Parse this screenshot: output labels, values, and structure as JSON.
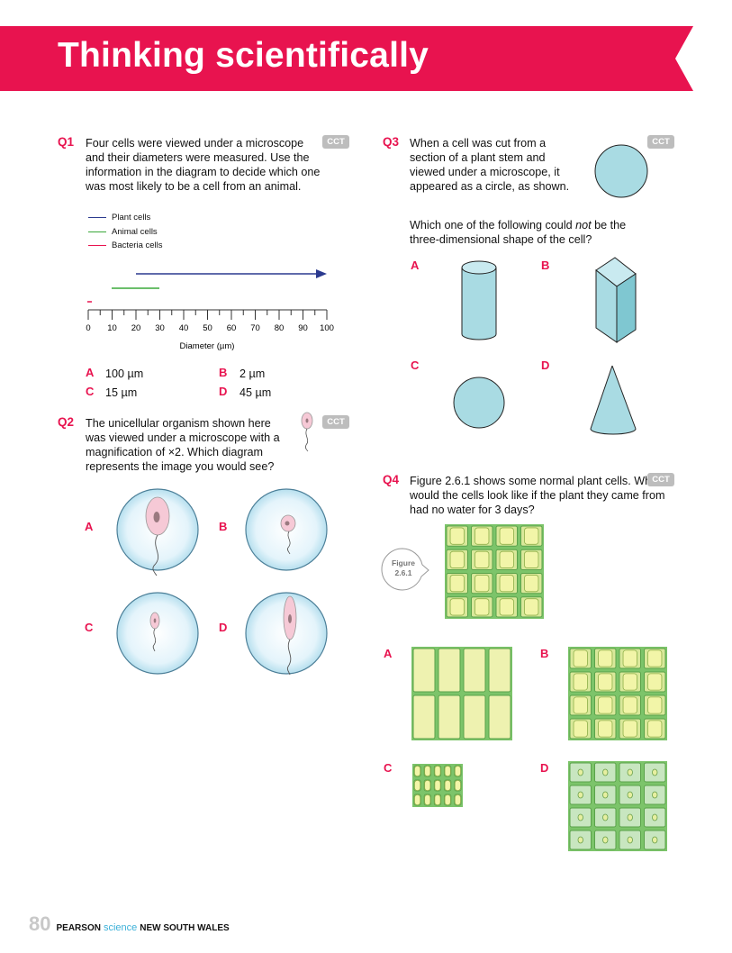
{
  "header": {
    "title": "Thinking scientifically"
  },
  "badge": "CCT",
  "q1": {
    "num": "Q1",
    "text": "Four cells were viewed under a microscope and their diameters were measured. Use the information in the diagram to decide which one was most likely to be a cell from an animal.",
    "legend": [
      {
        "label": "Plant cells",
        "color": "#2b3a8f"
      },
      {
        "label": "Animal cells",
        "color": "#3aa83a"
      },
      {
        "label": "Bacteria cells",
        "color": "#e8134f"
      }
    ],
    "axis_label": "Diameter (µm)",
    "ticks": [
      "0",
      "10",
      "20",
      "30",
      "40",
      "50",
      "60",
      "70",
      "80",
      "90",
      "100"
    ],
    "options": [
      {
        "letter": "A",
        "text": "100 µm"
      },
      {
        "letter": "B",
        "text": "2 µm"
      },
      {
        "letter": "C",
        "text": "15 µm"
      },
      {
        "letter": "D",
        "text": "45 µm"
      }
    ]
  },
  "q2": {
    "num": "Q2",
    "text": "The unicellular organism shown here was viewed under a microscope with a magnification of ×2. Which diagram represents the image you would see?",
    "options": [
      "A",
      "B",
      "C",
      "D"
    ]
  },
  "q3": {
    "num": "Q3",
    "text": "When a cell was cut from a section of a plant stem and viewed under a microscope, it appeared as a circle, as shown.",
    "text2_pre": "Which one of the following could ",
    "text2_em": "not",
    "text2_post": " be the three-dimensional shape of the cell?",
    "options": [
      "A",
      "B",
      "C",
      "D"
    ]
  },
  "q4": {
    "num": "Q4",
    "text": "Figure 2.6.1 shows some normal plant cells. What would the cells look like if the plant they came from had no water for 3 days?",
    "figure_word": "Figure",
    "figure_num": "2.6.1",
    "options": [
      "A",
      "B",
      "C",
      "D"
    ]
  },
  "footer": {
    "page": "80",
    "pearson": "PEARSON",
    "science": "science",
    "region": "NEW SOUTH WALES"
  }
}
